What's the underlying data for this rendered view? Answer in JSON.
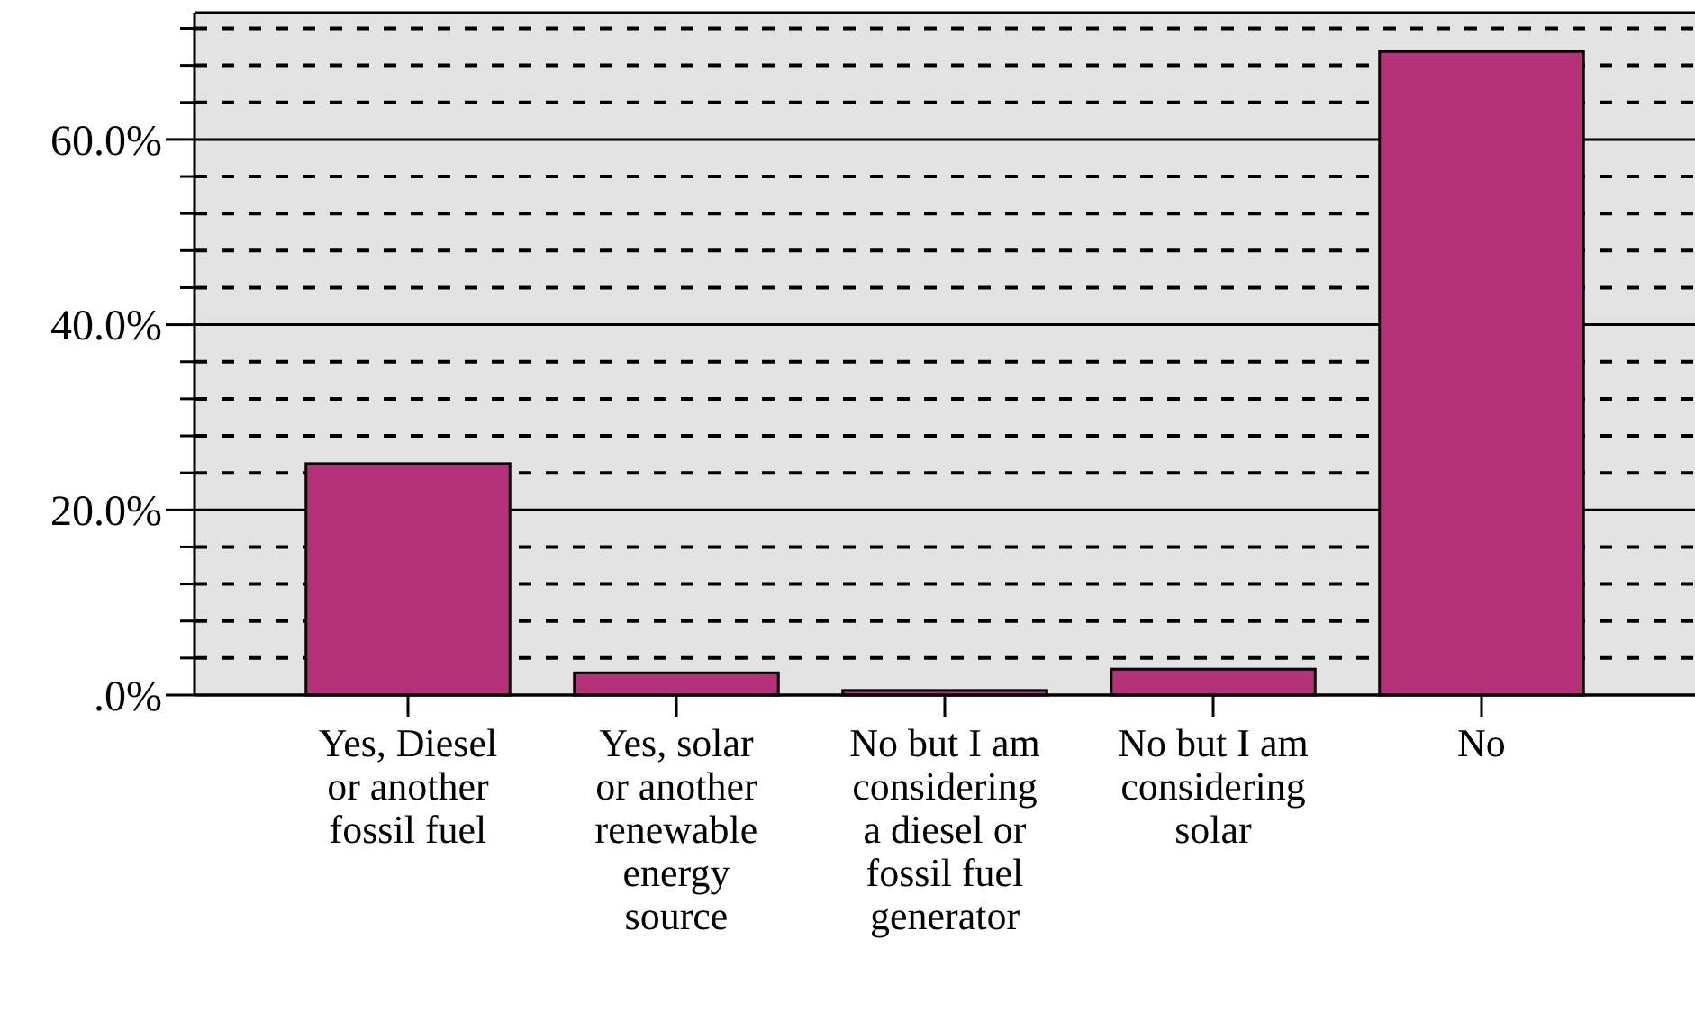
{
  "chart_data": {
    "type": "bar",
    "categories": [
      "Yes, Diesel or another fossil fuel",
      "Yes, solar or another renewable energy source",
      "No but I am considering a diesel or fossil fuel generator",
      "No but I am considering solar",
      "No"
    ],
    "values": [
      25.0,
      2.4,
      0.5,
      2.8,
      69.5
    ],
    "color": "#b5327a",
    "ylim": [
      0,
      73.7
    ],
    "yticks": [
      {
        "value": 0,
        "label": ".0%"
      },
      {
        "value": 4,
        "label": null
      },
      {
        "value": 8,
        "label": null
      },
      {
        "value": 12,
        "label": null
      },
      {
        "value": 16,
        "label": null
      },
      {
        "value": 20,
        "label": "20.0%"
      },
      {
        "value": 24,
        "label": null
      },
      {
        "value": 28,
        "label": null
      },
      {
        "value": 32,
        "label": null
      },
      {
        "value": 36,
        "label": null
      },
      {
        "value": 40,
        "label": "40.0%"
      },
      {
        "value": 44,
        "label": null
      },
      {
        "value": 48,
        "label": null
      },
      {
        "value": 52,
        "label": null
      },
      {
        "value": 56,
        "label": null
      },
      {
        "value": 60,
        "label": "60.0%"
      },
      {
        "value": 64,
        "label": null
      },
      {
        "value": 68,
        "label": null
      },
      {
        "value": 72,
        "label": null
      }
    ],
    "grid": true
  }
}
